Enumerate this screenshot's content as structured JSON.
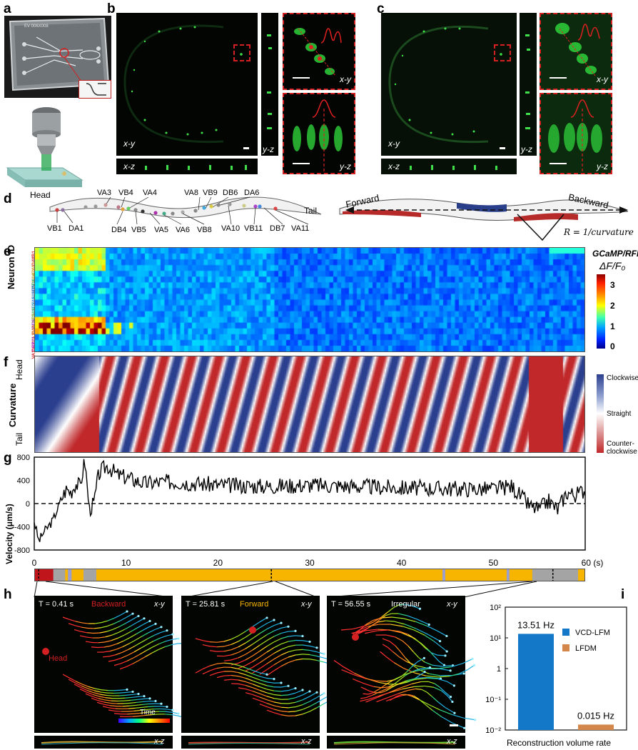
{
  "panel_labels": {
    "a": "a",
    "b": "b",
    "c": "c",
    "d": "d",
    "e": "e",
    "f": "f",
    "g": "g",
    "h": "h",
    "i": "i"
  },
  "panel_a": {
    "chip_text": "EV 006X008"
  },
  "panel_b": {
    "xy": "x-y",
    "yz": "y-z",
    "xz": "x-z",
    "inset_xy": "x-y",
    "inset_yz": "y-z"
  },
  "panel_c": {
    "xy": "x-y",
    "yz": "y-z",
    "xz": "x-z",
    "inset_xy": "x-y",
    "inset_yz": "y-z"
  },
  "panel_d": {
    "head": "Head",
    "tail": "Tail",
    "top_neurons": [
      "VA3",
      "VB4",
      "VA4",
      "VA8",
      "VB9",
      "DB6",
      "DA6"
    ],
    "bottom_neurons": [
      "VB1",
      "DA1",
      "DB4",
      "VB5",
      "VA5",
      "VA6",
      "VB8",
      "VA10",
      "VB11",
      "DB7",
      "VA11"
    ],
    "forward": "Forward",
    "backward": "Backward",
    "formula": "R = 1/curvature"
  },
  "panel_e": {
    "ylabel": "Neuron ID",
    "neuron_ids": [
      "VB1",
      "DA1",
      "VA3",
      "VB4",
      "VA4",
      "DB4",
      "VB5",
      "VA5",
      "VA6",
      "VB8",
      "VA8",
      "VB9",
      "DB6",
      "DA6",
      "VA10",
      "VB11",
      "DB7",
      "VA11"
    ],
    "colorbar_title": "GCaMP/RFP",
    "colorbar_unit": "ΔF/F₀",
    "colorbar_ticks": [
      "3",
      "2",
      "1",
      "0"
    ]
  },
  "panel_f": {
    "ylabel": "Curvature",
    "head": "Head",
    "tail": "Tail",
    "legend": [
      "Clockwise",
      "Straight",
      "Counter-clockwise"
    ],
    "colors": {
      "clockwise": "#2b3f8f",
      "straight": "#ffffff",
      "counter": "#c0282a"
    }
  },
  "chart_data": {
    "type": "line",
    "ylabel": "Velocity (μm/s)",
    "xlabel": "(s)",
    "xlim": [
      0,
      60
    ],
    "ylim": [
      -800,
      800
    ],
    "yticks": [
      "800",
      "400",
      "0",
      "-400",
      "-800"
    ],
    "xticks": [
      "0",
      "10",
      "20",
      "30",
      "40",
      "50",
      "60 (s)"
    ],
    "series": [
      {
        "x": [
          0,
          0.5,
          1,
          1.5,
          2,
          2.5,
          3,
          3.5,
          4,
          4.5,
          5,
          5.5,
          6,
          6.5,
          7,
          7.5,
          8,
          9,
          10,
          12,
          15,
          20,
          25,
          30,
          35,
          40,
          45,
          50,
          52,
          54,
          55,
          56,
          57,
          58,
          59,
          60
        ],
        "values": [
          -300,
          -650,
          -500,
          -400,
          -300,
          -100,
          100,
          250,
          200,
          350,
          300,
          750,
          -100,
          0,
          500,
          600,
          650,
          500,
          450,
          350,
          380,
          320,
          300,
          320,
          300,
          270,
          260,
          250,
          300,
          -50,
          -100,
          50,
          -100,
          200,
          150,
          250
        ]
      }
    ]
  },
  "behavior_bar": {
    "colors": {
      "backward": "#c0151a",
      "forward": "#f7b500",
      "irregular": "#a4a4a4",
      "turn": "#9b9fd0"
    }
  },
  "panel_h": [
    {
      "time": "T = 0.41 s",
      "state": "Backward",
      "state_color": "#d42020",
      "plane": "x-y",
      "xz": "x-z",
      "head": "Head",
      "colorbar": "Time"
    },
    {
      "time": "T = 25.81 s",
      "state": "Forward",
      "state_color": "#f7b500",
      "plane": "x-y",
      "xz": "x-z"
    },
    {
      "time": "T = 56.55 s",
      "state": "Irregular",
      "state_color": "#ffffff",
      "plane": "x-y",
      "xz": "x-z"
    }
  ],
  "panel_i": {
    "chart_data": {
      "type": "bar",
      "categories": [
        "VCD-LFM",
        "LFDM"
      ],
      "values": [
        13.51,
        0.015
      ],
      "labels": [
        "13.51 Hz",
        "0.015 Hz"
      ],
      "colors": [
        "#1478c8",
        "#d4874a"
      ],
      "yscale": "log",
      "ylim": [
        0.01,
        100
      ],
      "yticks": [
        "10²",
        "10¹",
        "1",
        "10⁻¹",
        "10⁻²"
      ],
      "xlabel": "Reconstruction volume rate"
    }
  }
}
